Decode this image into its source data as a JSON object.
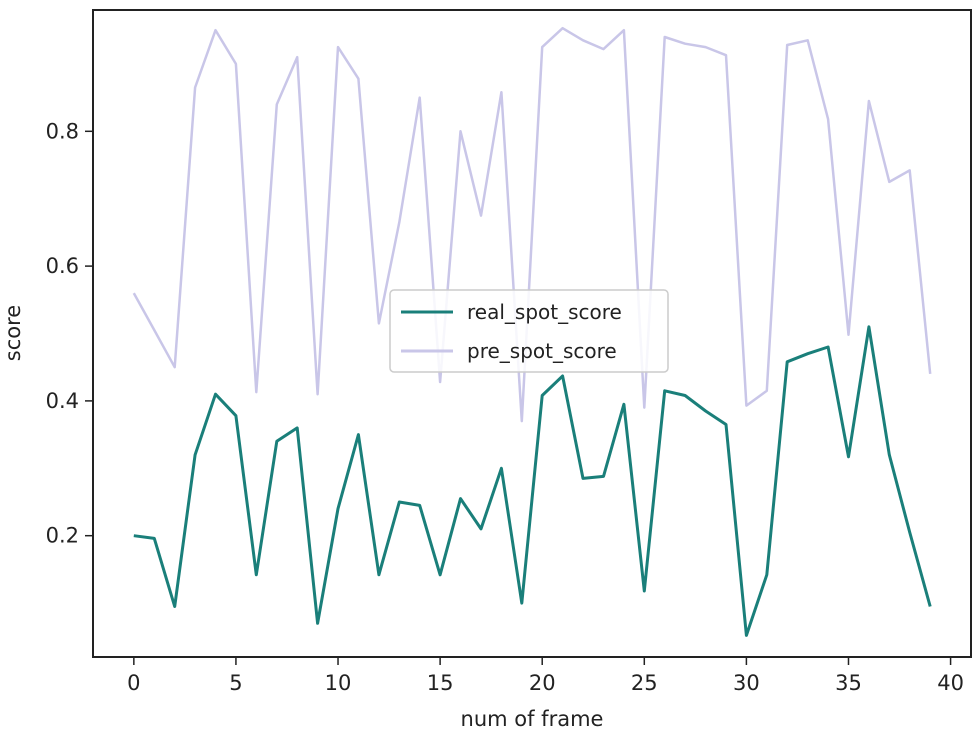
{
  "chart_data": {
    "type": "line",
    "title": "",
    "xlabel": "num of frame",
    "ylabel": "score",
    "xlim": [
      -2,
      41
    ],
    "ylim": [
      0.02,
      0.98
    ],
    "xticks": [
      0,
      5,
      10,
      15,
      20,
      25,
      30,
      35,
      40
    ],
    "yticks": [
      0.2,
      0.4,
      0.6,
      0.8
    ],
    "xtick_labels": [
      "0",
      "5",
      "10",
      "15",
      "20",
      "25",
      "30",
      "35",
      "40"
    ],
    "ytick_labels": [
      "0.2",
      "0.4",
      "0.6",
      "0.8"
    ],
    "grid": false,
    "legend_position": "center",
    "x": [
      0,
      1,
      2,
      3,
      4,
      5,
      6,
      7,
      8,
      9,
      10,
      11,
      12,
      13,
      14,
      15,
      16,
      17,
      18,
      19,
      20,
      21,
      22,
      23,
      24,
      25,
      26,
      27,
      28,
      29,
      30,
      31,
      32,
      33,
      34,
      35,
      36,
      37,
      38,
      39
    ],
    "series": [
      {
        "name": "real_spot_score",
        "color": "#1a7f7a",
        "values": [
          0.2,
          0.196,
          0.095,
          0.32,
          0.41,
          0.378,
          0.142,
          0.34,
          0.36,
          0.07,
          0.24,
          0.35,
          0.142,
          0.25,
          0.245,
          0.142,
          0.255,
          0.21,
          0.3,
          0.1,
          0.408,
          0.437,
          0.285,
          0.288,
          0.395,
          0.118,
          0.415,
          0.408,
          0.385,
          0.365,
          0.052,
          0.142,
          0.458,
          0.47,
          0.48,
          0.317,
          0.51,
          0.32,
          0.205,
          0.095
        ]
      },
      {
        "name": "pre_spot_score",
        "color": "#c9c6e8",
        "values": [
          0.56,
          0.505,
          0.45,
          0.865,
          0.95,
          0.9,
          0.413,
          0.84,
          0.91,
          0.41,
          0.925,
          0.878,
          0.515,
          0.665,
          0.85,
          0.428,
          0.8,
          0.675,
          0.858,
          0.37,
          0.925,
          0.953,
          0.935,
          0.922,
          0.95,
          0.39,
          0.94,
          0.93,
          0.925,
          0.913,
          0.393,
          0.415,
          0.928,
          0.935,
          0.818,
          0.498,
          0.845,
          0.725,
          0.742,
          0.44
        ]
      }
    ]
  }
}
